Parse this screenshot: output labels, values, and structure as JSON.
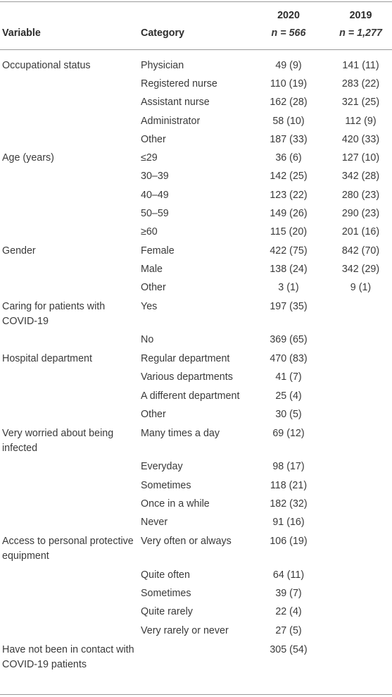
{
  "header": {
    "variable": "Variable",
    "category": "Category",
    "col2020_year": "2020",
    "col2020_n": "n = 566",
    "col2019_year": "2019",
    "col2019_n": "n = 1,277"
  },
  "rows": [
    {
      "variable": "Occupational status",
      "category": "Physician",
      "v2020": "49 (9)",
      "v2019": "141 (11)"
    },
    {
      "variable": "",
      "category": "Registered nurse",
      "v2020": "110 (19)",
      "v2019": "283 (22)"
    },
    {
      "variable": "",
      "category": "Assistant nurse",
      "v2020": "162 (28)",
      "v2019": "321 (25)"
    },
    {
      "variable": "",
      "category": "Administrator",
      "v2020": "58 (10)",
      "v2019": "112 (9)"
    },
    {
      "variable": "",
      "category": "Other",
      "v2020": "187 (33)",
      "v2019": "420 (33)"
    },
    {
      "variable": "Age (years)",
      "category": "≤29",
      "v2020": "36 (6)",
      "v2019": "127 (10)"
    },
    {
      "variable": "",
      "category": "30–39",
      "v2020": "142 (25)",
      "v2019": "342 (28)"
    },
    {
      "variable": "",
      "category": "40–49",
      "v2020": "123 (22)",
      "v2019": "280 (23)"
    },
    {
      "variable": "",
      "category": "50–59",
      "v2020": "149 (26)",
      "v2019": "290 (23)"
    },
    {
      "variable": "",
      "category": "≥60",
      "v2020": "115 (20)",
      "v2019": "201 (16)"
    },
    {
      "variable": "Gender",
      "category": "Female",
      "v2020": "422 (75)",
      "v2019": "842 (70)"
    },
    {
      "variable": "",
      "category": "Male",
      "v2020": "138 (24)",
      "v2019": "342 (29)"
    },
    {
      "variable": "",
      "category": "Other",
      "v2020": "3 (1)",
      "v2019": "9 (1)"
    },
    {
      "variable": "Caring for patients with COVID-19",
      "category": "Yes",
      "v2020": "197 (35)",
      "v2019": ""
    },
    {
      "variable": "",
      "category": "No",
      "v2020": "369 (65)",
      "v2019": ""
    },
    {
      "variable": "Hospital department",
      "category": "Regular department",
      "v2020": "470 (83)",
      "v2019": ""
    },
    {
      "variable": "",
      "category": "Various departments",
      "v2020": "41 (7)",
      "v2019": ""
    },
    {
      "variable": "",
      "category": "A different department",
      "v2020": "25 (4)",
      "v2019": ""
    },
    {
      "variable": "",
      "category": "Other",
      "v2020": "30 (5)",
      "v2019": ""
    },
    {
      "variable": "Very worried about being infected",
      "category": "Many times a day",
      "v2020": "69 (12)",
      "v2019": ""
    },
    {
      "variable": "",
      "category": "Everyday",
      "v2020": "98 (17)",
      "v2019": ""
    },
    {
      "variable": "",
      "category": "Sometimes",
      "v2020": "118 (21)",
      "v2019": ""
    },
    {
      "variable": "",
      "category": "Once in a while",
      "v2020": "182 (32)",
      "v2019": ""
    },
    {
      "variable": "",
      "category": "Never",
      "v2020": "91 (16)",
      "v2019": ""
    },
    {
      "variable": "Access to personal protective equipment",
      "category": "Very often or always",
      "v2020": "106 (19)",
      "v2019": ""
    },
    {
      "variable": "",
      "category": "Quite often",
      "v2020": "64 (11)",
      "v2019": ""
    },
    {
      "variable": "",
      "category": "Sometimes",
      "v2020": "39 (7)",
      "v2019": ""
    },
    {
      "variable": "",
      "category": "Quite rarely",
      "v2020": "22 (4)",
      "v2019": ""
    },
    {
      "variable": "",
      "category": "Very rarely or never",
      "v2020": "27 (5)",
      "v2019": ""
    },
    {
      "variable": "Have not been in contact with COVID-19 patients",
      "category": "",
      "v2020": "305 (54)",
      "v2019": ""
    }
  ]
}
